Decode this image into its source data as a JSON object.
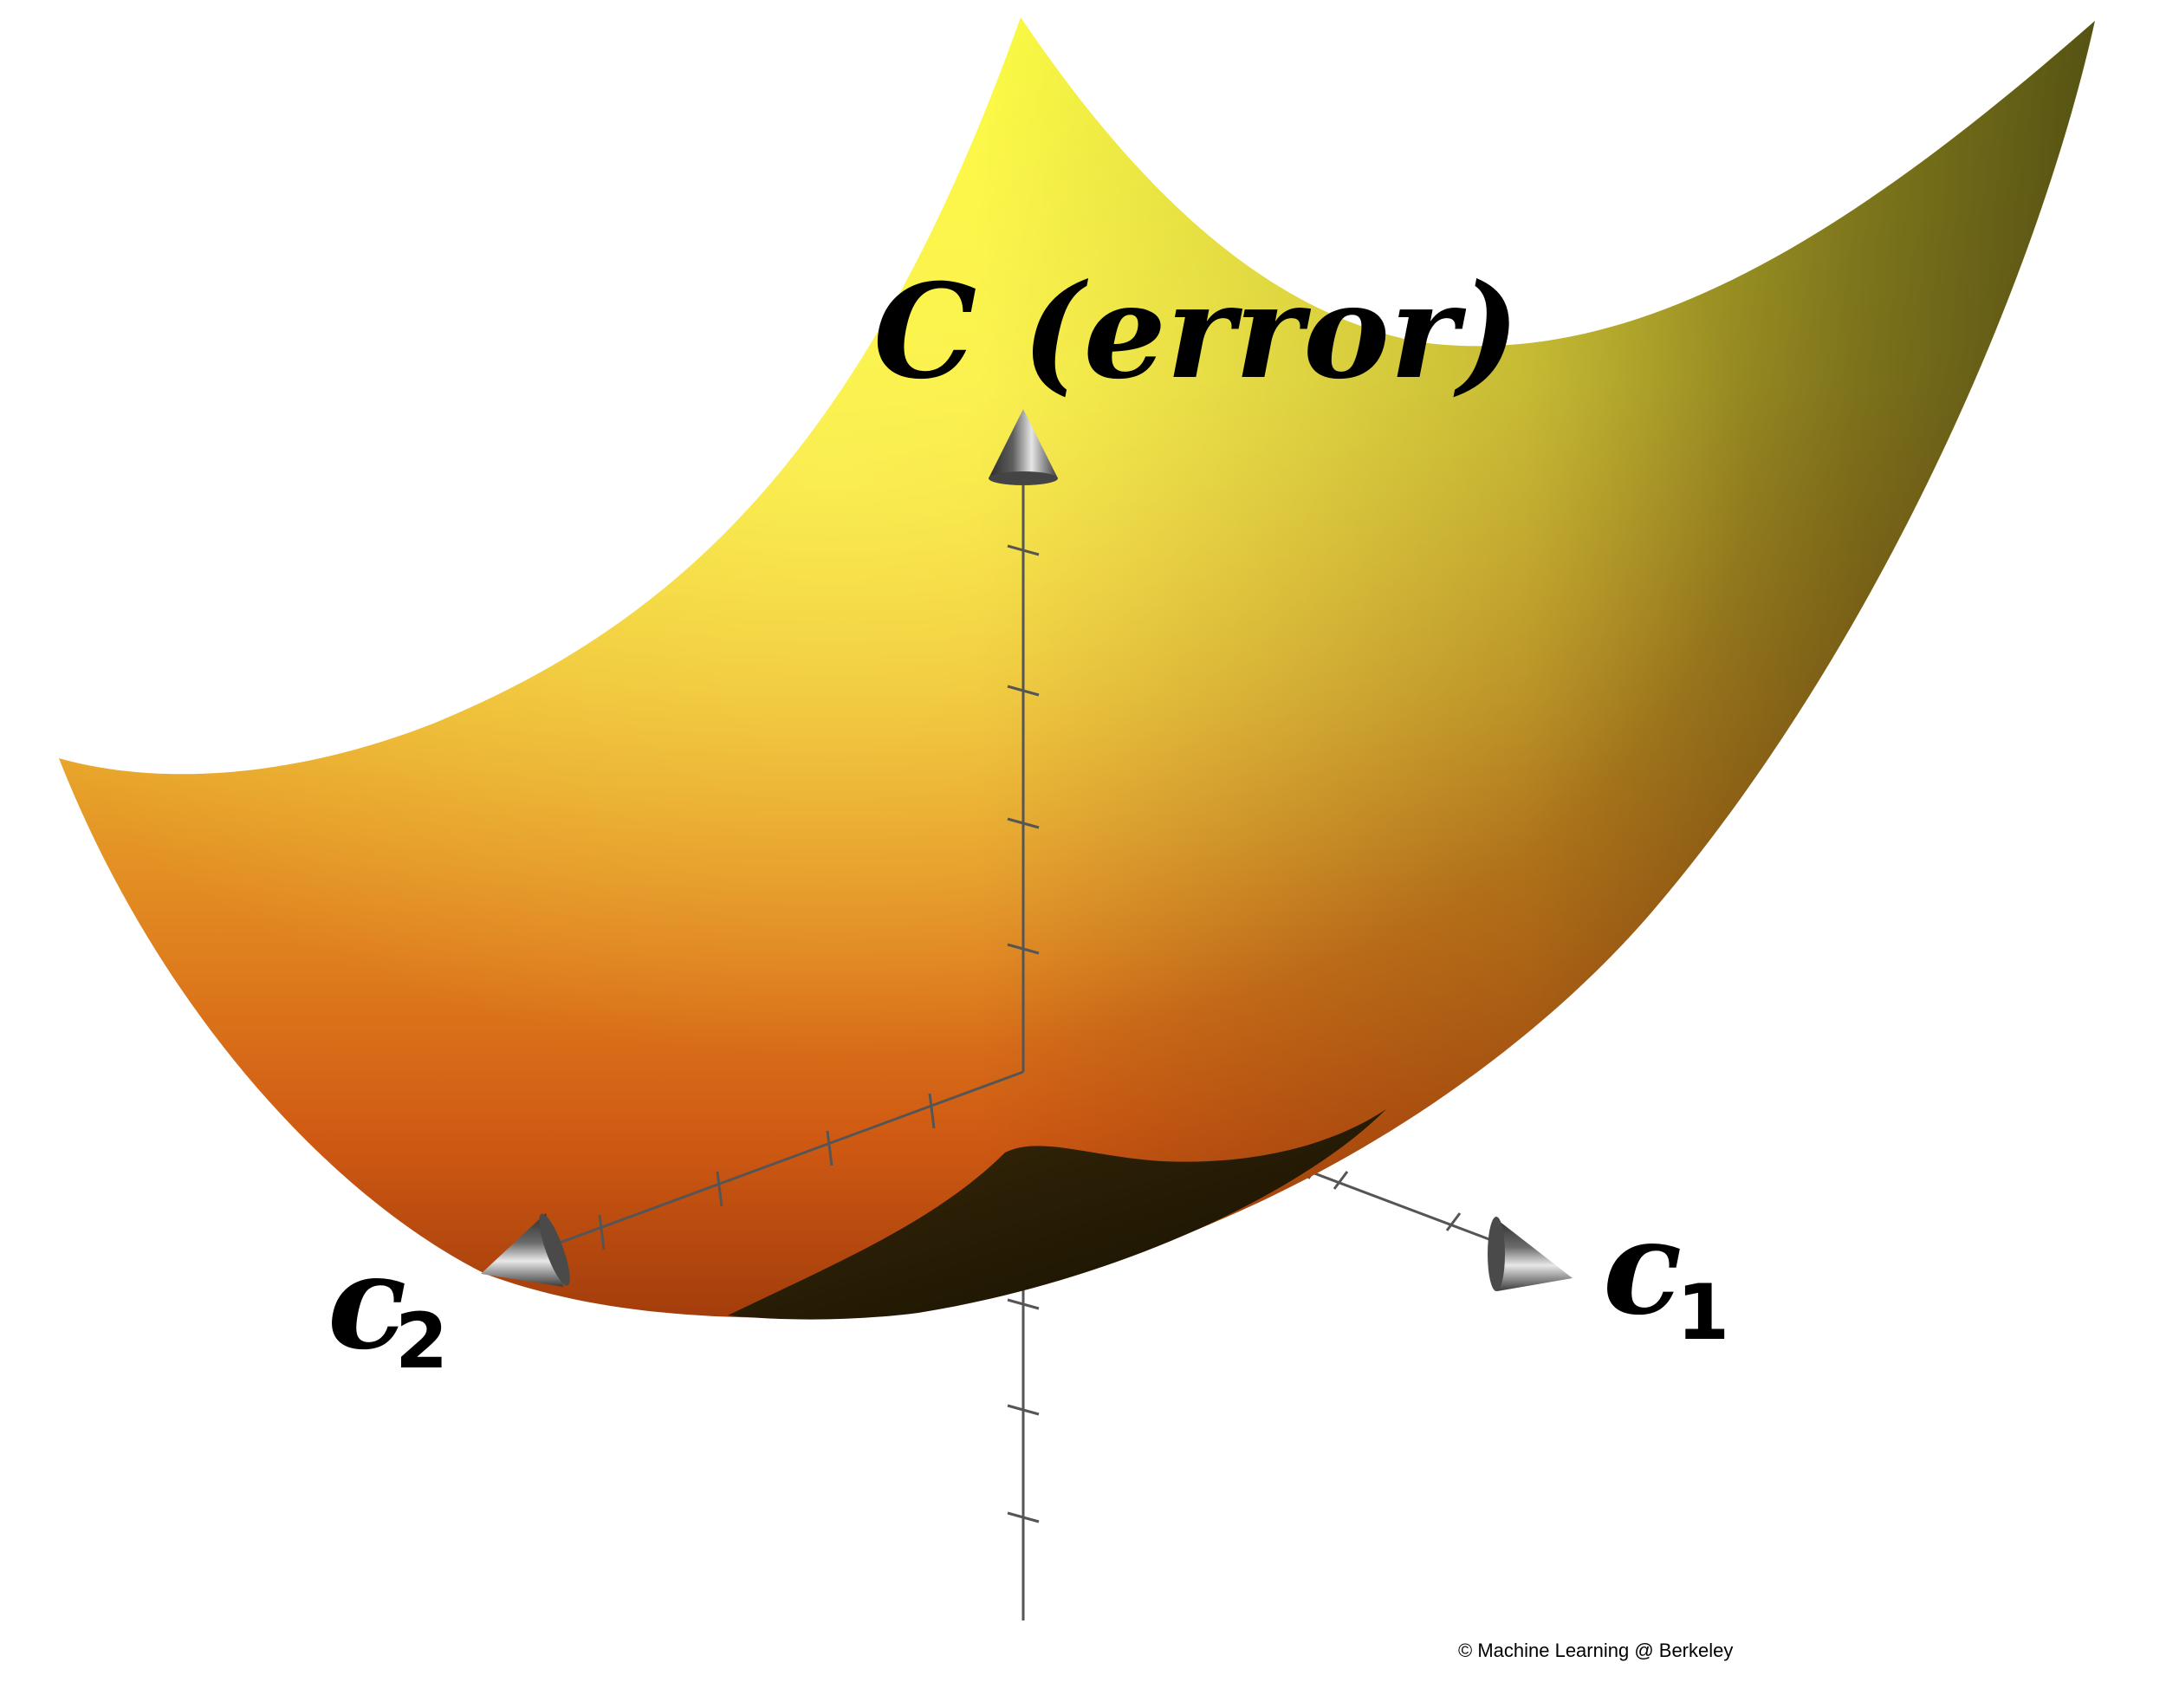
{
  "figure": {
    "vertical_axis_label": "C (error)",
    "axis_1_letter": "c",
    "axis_1_subscript": "1",
    "axis_2_letter": "c",
    "axis_2_subscript": "2",
    "credit": "© Machine Learning @ Berkeley"
  },
  "surface": {
    "shape": "convex bowl (error surface)",
    "colors": {
      "top": "#fafa42",
      "middle": "#e39a2a",
      "bottom": "#b84a10",
      "shadow": "#241a05",
      "axis": "#555555",
      "cone": "#8a8a8a"
    }
  }
}
